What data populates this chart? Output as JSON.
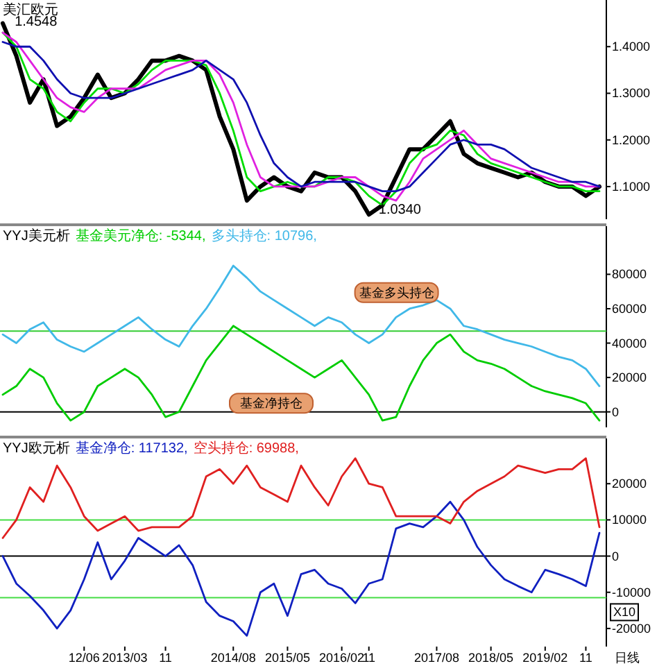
{
  "chart_data": [
    {
      "type": "line",
      "title": "美汇欧元",
      "categories": [
        null,
        null,
        null,
        null,
        null,
        null,
        null,
        null,
        null,
        null,
        null,
        null,
        null,
        null,
        null,
        null,
        null,
        null,
        null,
        null,
        null,
        null,
        null,
        null,
        null,
        null,
        null,
        null,
        null,
        null,
        null,
        null,
        null,
        null,
        null,
        null,
        null,
        null,
        null,
        null,
        null,
        null,
        null,
        null,
        null
      ],
      "series": [
        {
          "color": "#000000",
          "values": [
            1.45,
            1.38,
            1.28,
            1.33,
            1.23,
            1.25,
            1.29,
            1.34,
            1.29,
            1.3,
            1.33,
            1.37,
            1.37,
            1.38,
            1.37,
            1.35,
            1.25,
            1.18,
            1.07,
            1.1,
            1.12,
            1.1,
            1.09,
            1.13,
            1.12,
            1.12,
            1.09,
            1.04,
            1.06,
            1.12,
            1.18,
            1.18,
            1.21,
            1.24,
            1.17,
            1.15,
            1.14,
            1.13,
            1.12,
            1.13,
            1.11,
            1.1,
            1.1,
            1.08,
            1.1
          ]
        },
        {
          "color": "#00dd00",
          "values": [
            1.43,
            1.4,
            1.33,
            1.31,
            1.26,
            1.24,
            1.28,
            1.31,
            1.31,
            1.3,
            1.32,
            1.35,
            1.37,
            1.37,
            1.37,
            1.36,
            1.3,
            1.22,
            1.12,
            1.09,
            1.1,
            1.11,
            1.1,
            1.1,
            1.12,
            1.12,
            1.11,
            1.08,
            1.06,
            1.09,
            1.15,
            1.18,
            1.19,
            1.22,
            1.21,
            1.17,
            1.15,
            1.14,
            1.13,
            1.12,
            1.11,
            1.1,
            1.1,
            1.09,
            1.09
          ]
        },
        {
          "color": "#e020e0",
          "values": [
            1.43,
            1.41,
            1.37,
            1.33,
            1.29,
            1.27,
            1.26,
            1.29,
            1.31,
            1.31,
            1.31,
            1.33,
            1.35,
            1.36,
            1.37,
            1.37,
            1.34,
            1.28,
            1.19,
            1.12,
            1.1,
            1.1,
            1.1,
            1.1,
            1.11,
            1.12,
            1.12,
            1.1,
            1.08,
            1.07,
            1.11,
            1.16,
            1.18,
            1.2,
            1.22,
            1.19,
            1.16,
            1.15,
            1.14,
            1.13,
            1.12,
            1.11,
            1.11,
            1.1,
            1.1
          ]
        },
        {
          "color": "#1010b0",
          "values": [
            1.41,
            1.4,
            1.4,
            1.37,
            1.33,
            1.3,
            1.29,
            1.29,
            1.29,
            1.3,
            1.31,
            1.32,
            1.33,
            1.34,
            1.35,
            1.37,
            1.35,
            1.33,
            1.28,
            1.21,
            1.15,
            1.12,
            1.1,
            1.11,
            1.11,
            1.11,
            1.11,
            1.1,
            1.09,
            1.09,
            1.1,
            1.13,
            1.16,
            1.19,
            1.2,
            1.19,
            1.19,
            1.18,
            1.16,
            1.14,
            1.13,
            1.12,
            1.11,
            1.11,
            1.1
          ]
        }
      ],
      "ylim": [
        1.03,
        1.5
      ],
      "yticks": [
        {
          "value": 1.1,
          "label": "1.1000"
        },
        {
          "value": 1.2,
          "label": "1.2000"
        },
        {
          "value": 1.3,
          "label": "1.3000"
        },
        {
          "value": 1.4,
          "label": "1.4000"
        }
      ],
      "tick_labels": "y",
      "annotations": [
        "1.4548",
        "1.0340"
      ]
    },
    {
      "type": "line",
      "title": "YYJ美元析",
      "categories": [
        null,
        null,
        null,
        null,
        null,
        null,
        null,
        null,
        null,
        null,
        null,
        null,
        null,
        null,
        null,
        null,
        null,
        null,
        null,
        null,
        null,
        null,
        null,
        null,
        null,
        null,
        null,
        null,
        null,
        null,
        null,
        null,
        null,
        null,
        null,
        null,
        null,
        null,
        null,
        null,
        null,
        null,
        null,
        null,
        null
      ],
      "series": [
        {
          "name": "基金美元净仓: -5344,",
          "color": "#00cc00",
          "values": [
            10000,
            15000,
            25000,
            20000,
            5000,
            -5000,
            0,
            15000,
            20000,
            25000,
            20000,
            10000,
            -3000,
            0,
            15000,
            30000,
            40000,
            50000,
            45000,
            40000,
            35000,
            30000,
            25000,
            20000,
            25000,
            30000,
            20000,
            10000,
            -5000,
            -3000,
            15000,
            30000,
            40000,
            45000,
            35000,
            30000,
            28000,
            25000,
            20000,
            15000,
            12000,
            10000,
            8000,
            5000,
            -5000
          ]
        },
        {
          "name": "多头持仓: 10796,",
          "color": "#40b8e8",
          "values": [
            45000,
            40000,
            48000,
            52000,
            42000,
            38000,
            35000,
            40000,
            45000,
            50000,
            55000,
            48000,
            42000,
            38000,
            50000,
            60000,
            72000,
            85000,
            78000,
            70000,
            65000,
            60000,
            55000,
            50000,
            55000,
            52000,
            45000,
            40000,
            45000,
            55000,
            60000,
            62000,
            65000,
            60000,
            50000,
            48000,
            45000,
            42000,
            40000,
            38000,
            35000,
            32000,
            30000,
            25000,
            15000
          ]
        }
      ],
      "ylim": [
        -9000,
        108000
      ],
      "yticks": [
        0,
        20000,
        40000,
        60000,
        80000
      ],
      "tick_labels": "y",
      "legend": "top left",
      "ref_lines": [
        {
          "axis": "y",
          "value": 0,
          "color": "#000000"
        },
        {
          "axis": "y",
          "value": 47000,
          "color": "#33cc33"
        }
      ],
      "annotations": [
        "基金多头持仓",
        "基金净持仓"
      ]
    },
    {
      "type": "line",
      "title": "YYJ欧元析",
      "categories": [
        null,
        null,
        null,
        null,
        null,
        null,
        "12/06",
        null,
        null,
        "2013/03",
        null,
        null,
        "11",
        null,
        null,
        null,
        null,
        "2014/08",
        null,
        null,
        null,
        "2015/05",
        null,
        null,
        null,
        "2016/02",
        null,
        "11",
        null,
        null,
        null,
        null,
        "2017/08",
        null,
        null,
        null,
        "2018/05",
        null,
        null,
        null,
        "2019/02",
        null,
        null,
        "11",
        null
      ],
      "series": [
        {
          "name": "基金净仓: 117132,",
          "color": "#1020c0",
          "values": [
            0,
            -7600,
            -11000,
            -15000,
            -20000,
            -15000,
            -6400,
            3800,
            -6400,
            -1300,
            5000,
            2500,
            0,
            3000,
            -2500,
            -12700,
            -16500,
            -18000,
            -22000,
            -10000,
            -7600,
            -16500,
            -5000,
            -3800,
            -7600,
            -9000,
            -13000,
            -7600,
            -6400,
            7600,
            9000,
            8000,
            11000,
            15000,
            10000,
            2500,
            -2500,
            -6400,
            -8300,
            -10000,
            -3800,
            -5000,
            -6400,
            -8300,
            6400
          ]
        },
        {
          "name": "空头持仓: 69988,",
          "color": "#e02020",
          "values": [
            5000,
            10000,
            19000,
            15000,
            25000,
            19000,
            11000,
            7000,
            9000,
            11000,
            7000,
            8000,
            8000,
            8000,
            11000,
            22000,
            24000,
            20000,
            25000,
            19000,
            17000,
            15000,
            25000,
            19000,
            14000,
            22000,
            27000,
            20000,
            19000,
            11000,
            11000,
            11000,
            11000,
            9000,
            15000,
            18000,
            20000,
            22000,
            25000,
            24000,
            23000,
            24000,
            24000,
            27000,
            8000
          ]
        }
      ],
      "ylim": [
        -25000,
        32500
      ],
      "yticks": [
        -20000,
        -10000,
        0,
        10000,
        20000
      ],
      "legend": "top left",
      "ref_lines": [
        {
          "axis": "y",
          "value": 0,
          "color": "#000000"
        },
        {
          "axis": "y",
          "value": 10000,
          "color": "#44dd44"
        },
        {
          "axis": "y",
          "value": -11500,
          "color": "#44dd44"
        }
      ],
      "annotations": [
        "X10",
        "日线"
      ]
    }
  ]
}
